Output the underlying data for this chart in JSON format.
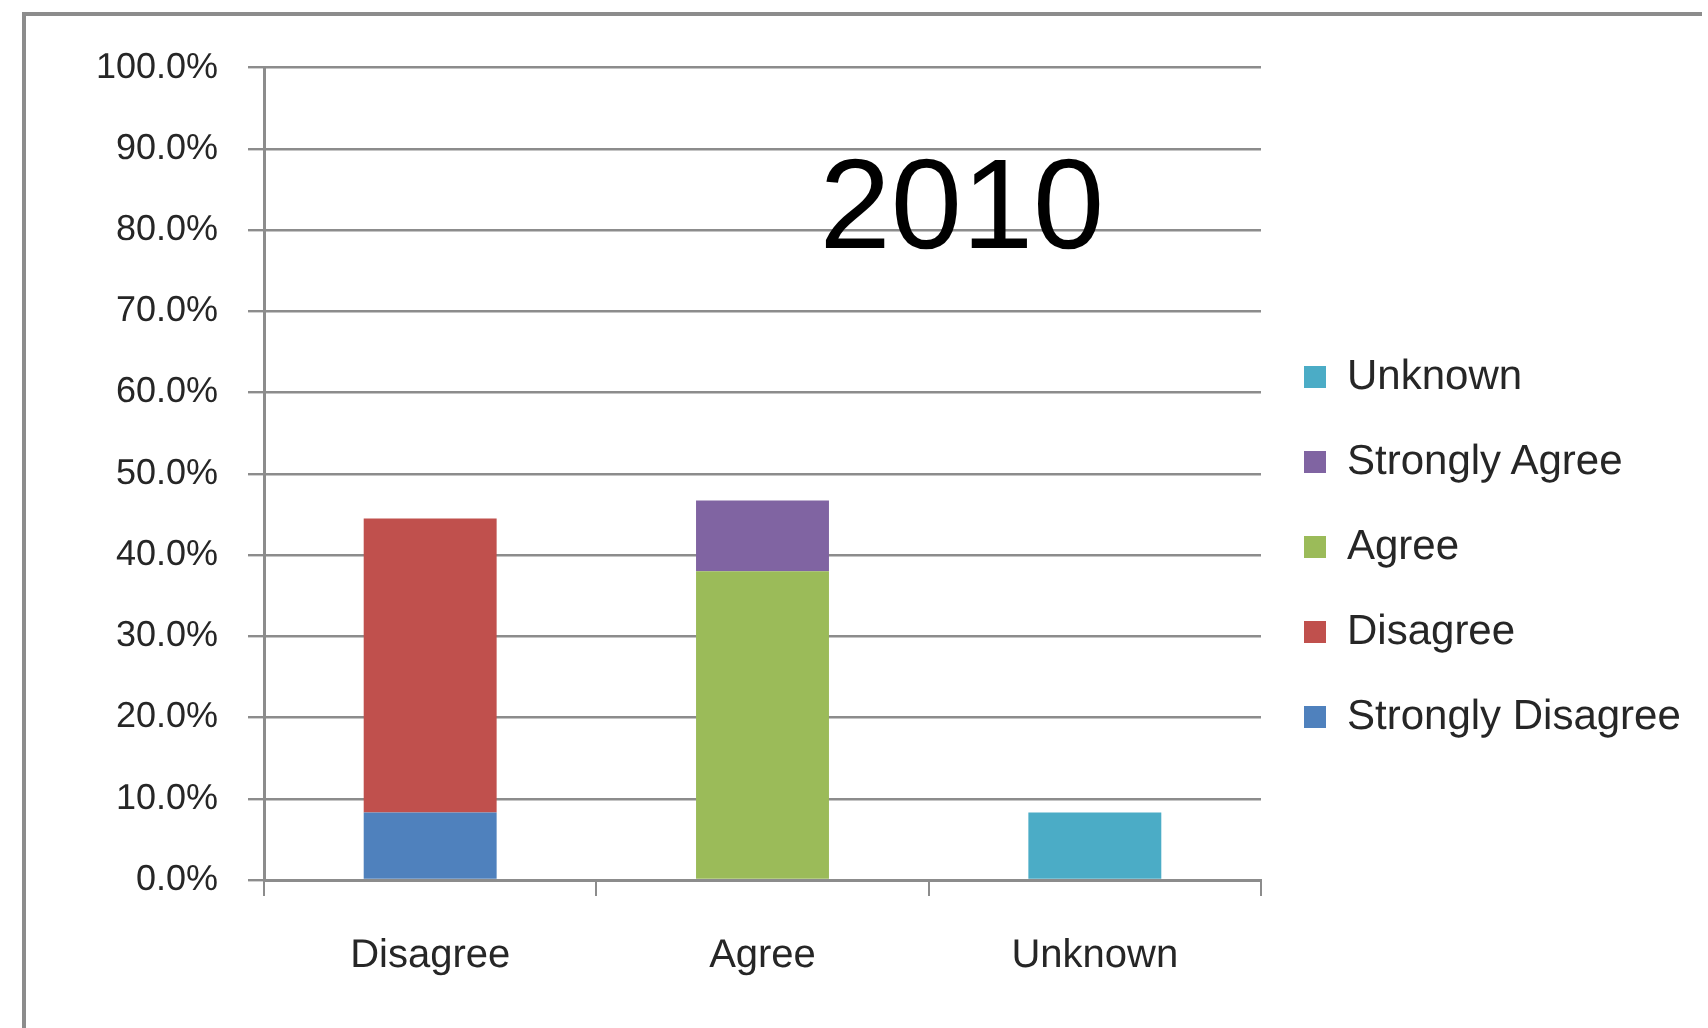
{
  "chart_data": {
    "type": "bar",
    "title": "2010",
    "stacked": true,
    "categories": [
      "Disagree",
      "Agree",
      "Unknown"
    ],
    "series": [
      {
        "name": "Strongly Disagree",
        "color": "#4f81bd",
        "values": [
          8.3,
          null,
          null
        ]
      },
      {
        "name": "Disagree",
        "color": "#c0504d",
        "values": [
          36.2,
          null,
          null
        ]
      },
      {
        "name": "Agree",
        "color": "#9bbb59",
        "values": [
          null,
          38.0,
          null
        ]
      },
      {
        "name": "Strongly Agree",
        "color": "#8064a2",
        "values": [
          null,
          8.7,
          null
        ]
      },
      {
        "name": "Unknown",
        "color": "#4bacc6",
        "values": [
          null,
          null,
          8.3
        ]
      }
    ],
    "ylim": [
      0,
      100
    ],
    "yticks": [
      {
        "value": 0,
        "label": "0.0%"
      },
      {
        "value": 10,
        "label": "10.0%"
      },
      {
        "value": 20,
        "label": "20.0%"
      },
      {
        "value": 30,
        "label": "30.0%"
      },
      {
        "value": 40,
        "label": "40.0%"
      },
      {
        "value": 50,
        "label": "50.0%"
      },
      {
        "value": 60,
        "label": "60.0%"
      },
      {
        "value": 70,
        "label": "70.0%"
      },
      {
        "value": 80,
        "label": "80.0%"
      },
      {
        "value": 90,
        "label": "90.0%"
      },
      {
        "value": 100,
        "label": "100.0%"
      }
    ],
    "grid": "y",
    "legend": "right"
  }
}
